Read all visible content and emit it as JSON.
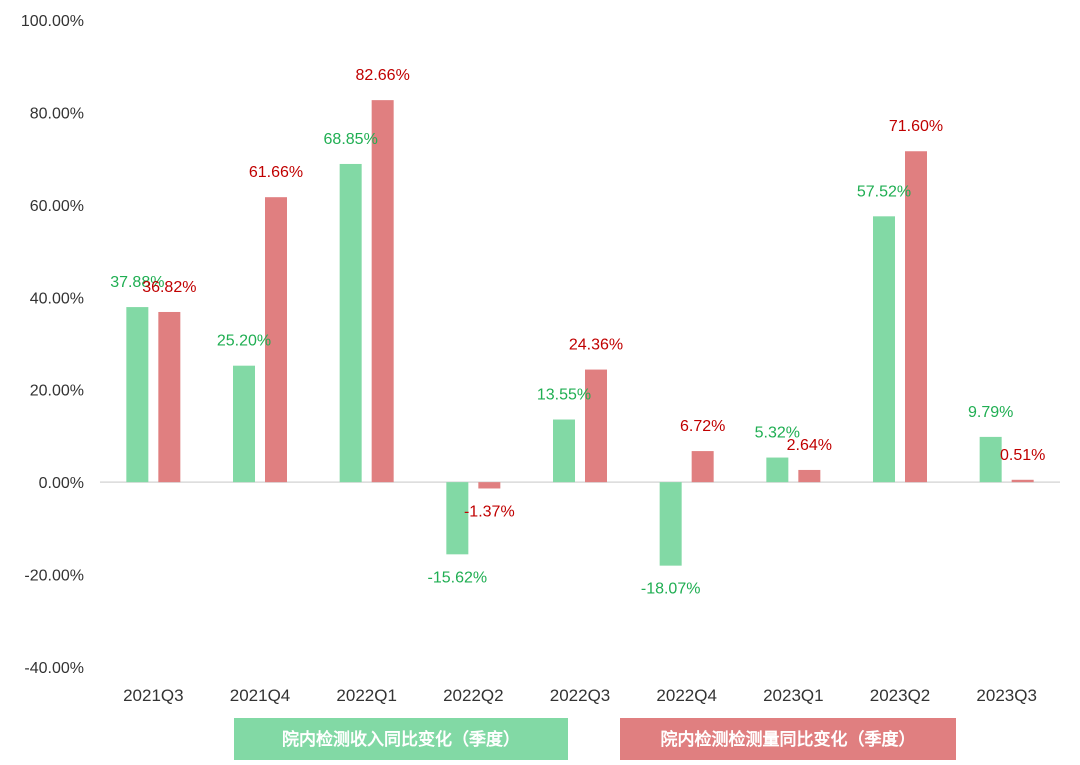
{
  "chart_data": {
    "type": "bar",
    "categories": [
      "2021Q3",
      "2021Q4",
      "2022Q1",
      "2022Q2",
      "2022Q3",
      "2022Q4",
      "2023Q1",
      "2023Q2",
      "2023Q3"
    ],
    "series": [
      {
        "name": "院内检测收入同比变化（季度）",
        "values": [
          37.88,
          25.2,
          68.85,
          -15.62,
          13.55,
          -18.07,
          5.32,
          57.52,
          9.79
        ],
        "labels": [
          "37.88%",
          "25.20%",
          "68.85%",
          "-15.62%",
          "13.55%",
          "-18.07%",
          "5.32%",
          "57.52%",
          "9.79%"
        ],
        "color": "#82d9a5",
        "label_color": "#1fae52"
      },
      {
        "name": "院内检测检测量同比变化（季度）",
        "values": [
          36.82,
          61.66,
          82.66,
          -1.37,
          24.36,
          6.72,
          2.64,
          71.6,
          0.51
        ],
        "labels": [
          "36.82%",
          "61.66%",
          "82.66%",
          "-1.37%",
          "24.36%",
          "6.72%",
          "2.64%",
          "71.60%",
          "0.51%"
        ],
        "color": "#e07f80",
        "label_color": "#c00000"
      }
    ],
    "yticks": [
      "100.00%",
      "80.00%",
      "60.00%",
      "40.00%",
      "20.00%",
      "0.00%",
      "-20.00%",
      "-40.00%"
    ],
    "ylim": [
      -40,
      100
    ],
    "legend_position": "bottom",
    "grid": false
  }
}
